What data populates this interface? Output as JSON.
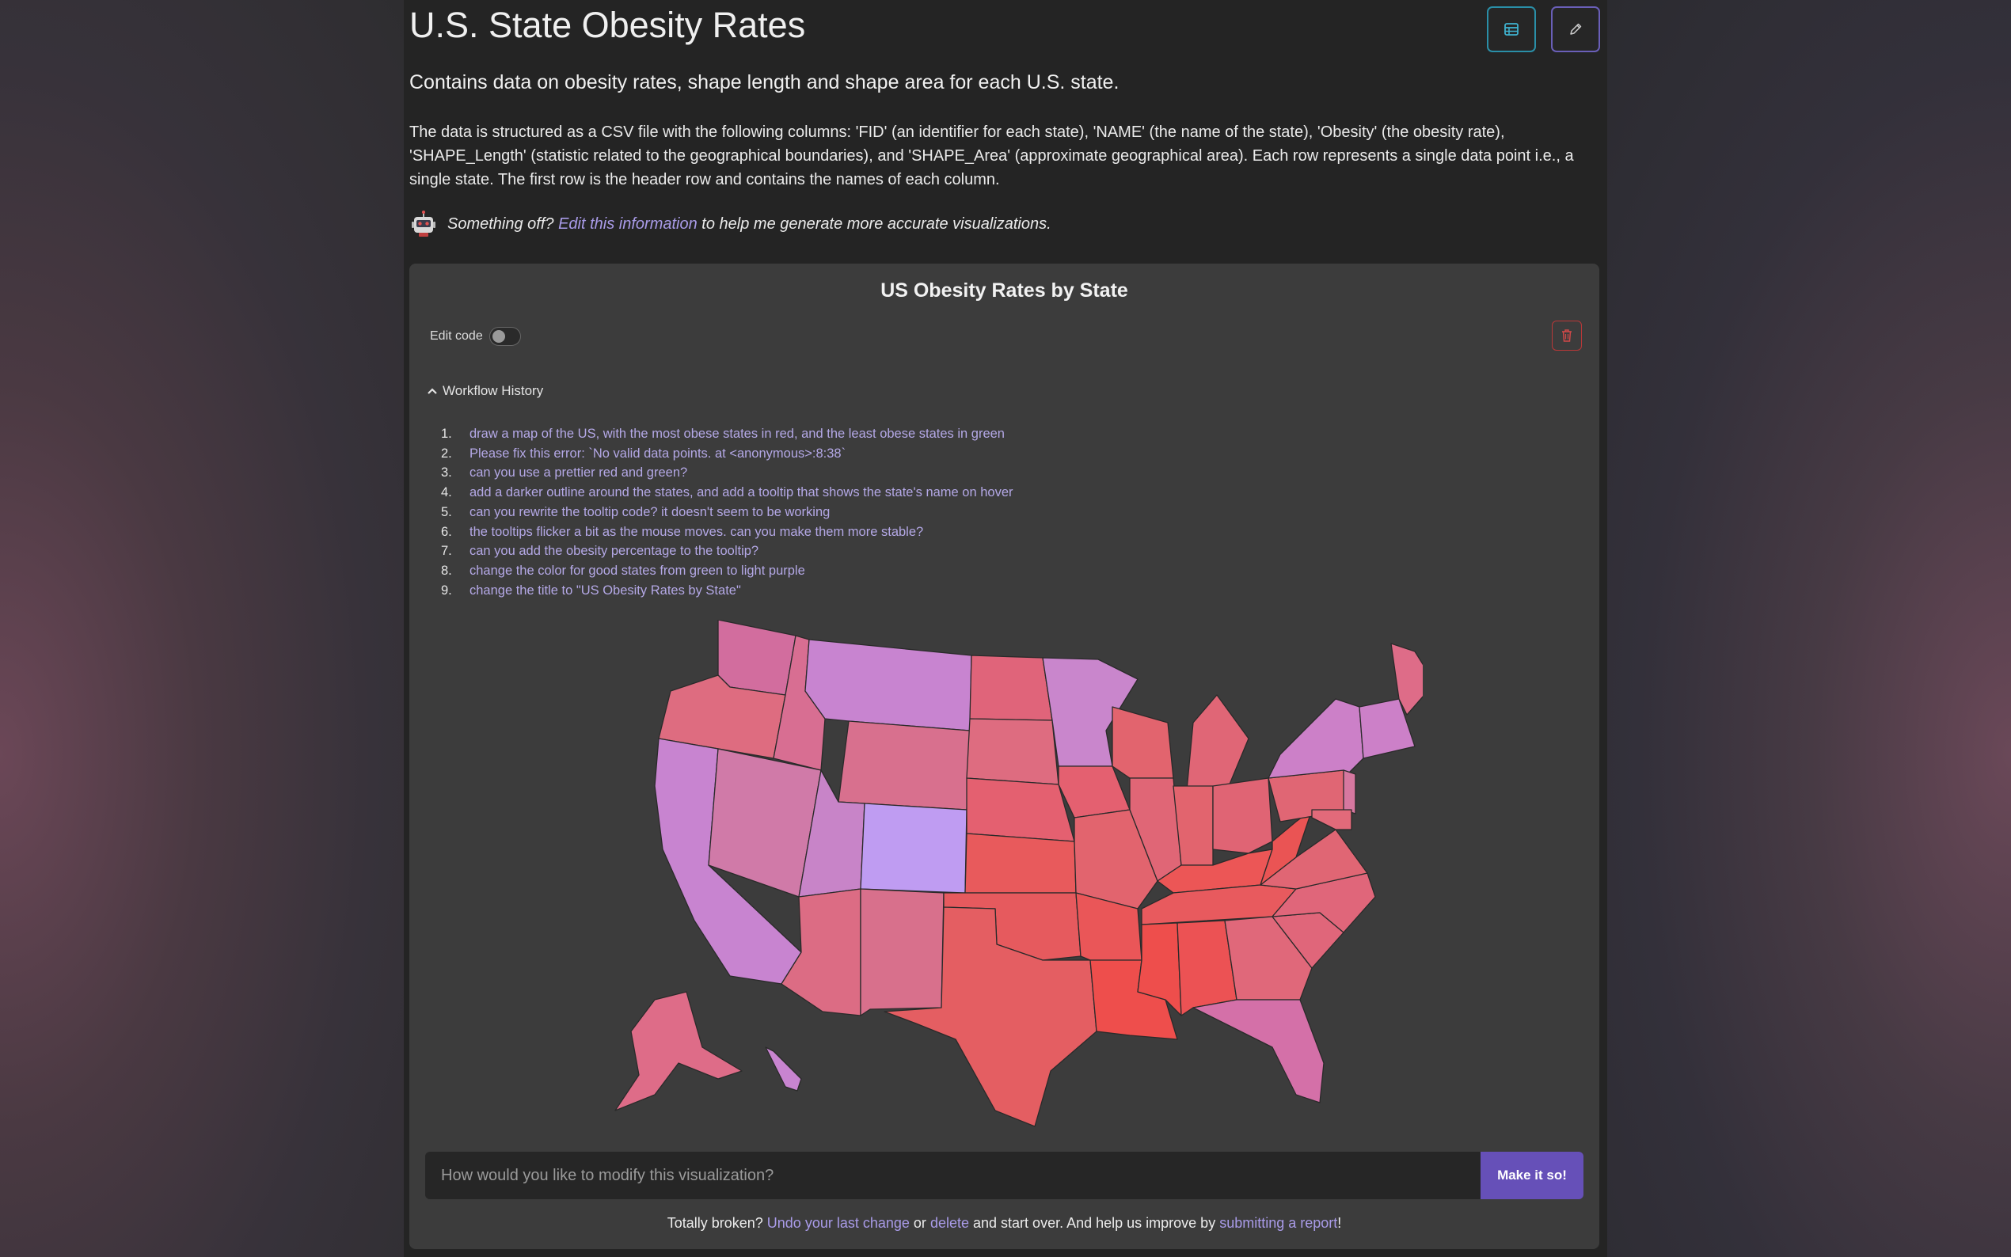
{
  "header": {
    "title": "U.S. State Obesity Rates",
    "subtitle": "Contains data on obesity rates, shape length and shape area for each U.S. state.",
    "description": "The data is structured as a CSV file with the following columns: 'FID' (an identifier for each state), 'NAME' (the name of the state), 'Obesity' (the obesity rate), 'SHAPE_Length' (statistic related to the geographical boundaries), and 'SHAPE_Area' (approximate geographical area). Each row represents a single data point i.e., a single state. The first row is the header row and contains the names of each column.",
    "table_icon": "table-icon",
    "edit_icon": "pencil-icon"
  },
  "hint": {
    "prefix": "Something off?",
    "link": "Edit this information",
    "suffix": "to help me generate more accurate visualizations."
  },
  "card": {
    "title": "US Obesity Rates by State",
    "edit_code_label": "Edit code",
    "workflow_label": "Workflow History",
    "workflow": [
      {
        "num": "1.",
        "text": "draw a map of the US, with the most obese states in red, and the least obese states in green"
      },
      {
        "num": "2.",
        "text": "Please fix this error: `No valid data points. at <anonymous>:8:38`"
      },
      {
        "num": "3.",
        "text": "can you use a prettier red and green?"
      },
      {
        "num": "4.",
        "text": "add a darker outline around the states, and add a tooltip that shows the state's name on hover"
      },
      {
        "num": "5.",
        "text": "can you rewrite the tooltip code? it doesn't seem to be working"
      },
      {
        "num": "6.",
        "text": "the tooltips flicker a bit as the mouse moves. can you make them more stable?"
      },
      {
        "num": "7.",
        "text": "can you add the obesity percentage to the tooltip?"
      },
      {
        "num": "8.",
        "text": "change the color for good states from green to light purple"
      },
      {
        "num": "9.",
        "text": "change the title to \"US Obesity Rates by State\""
      }
    ],
    "prompt_placeholder": "How would you like to modify this visualization?",
    "make_button": "Make it so!"
  },
  "footer": {
    "t1": "Totally broken?",
    "undo": "Undo your last change",
    "t2": "or",
    "delete": "delete",
    "t3": "and start over. And help us improve by",
    "report": "submitting a report",
    "t4": "!"
  },
  "map_colors": {
    "most": "#e8503e",
    "least": "#c08ce0",
    "outline": "#2a2a2a"
  }
}
